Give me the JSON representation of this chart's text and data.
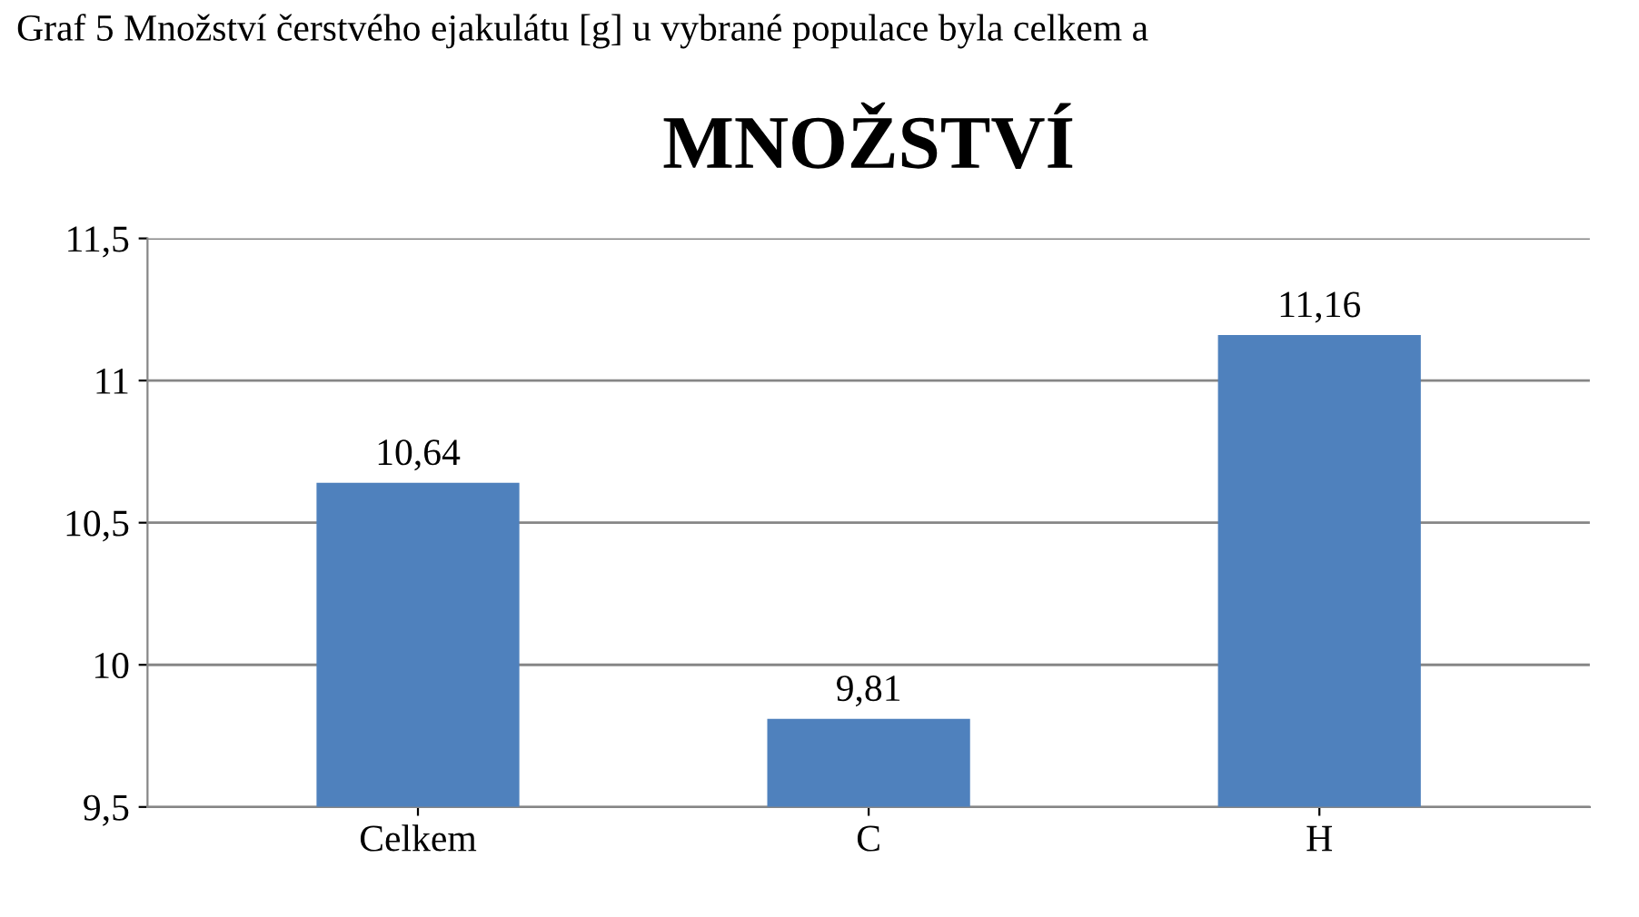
{
  "chart_data": {
    "type": "bar",
    "title": "MNOŽSTVÍ",
    "annotations": [
      "Graf 5 Množství čerstvého ejakulátu [g] u vybrané populace byla celkem a"
    ],
    "categories": [
      "Celkem",
      "C",
      "H"
    ],
    "values": [
      10.64,
      9.81,
      11.16
    ],
    "value_labels": [
      "10,64",
      "9,81",
      "11,16"
    ],
    "color": "#4f81bd",
    "ylim": [
      9.5,
      11.5
    ],
    "yticks": [
      {
        "value": 9.5,
        "label": "9,5"
      },
      10,
      {
        "value": 10.5,
        "label": "10,5"
      },
      11,
      {
        "value": 11.5,
        "label": "11,5"
      }
    ],
    "grid": "y"
  }
}
